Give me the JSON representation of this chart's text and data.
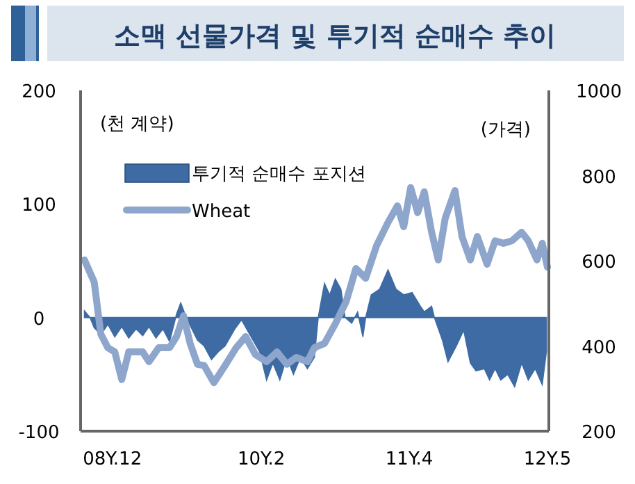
{
  "chart_data": {
    "type": "area",
    "title": "소맥 선물가격 및 투기적 순매수 추이",
    "ylabel": "(천 계약)",
    "y2label": "(가격)",
    "xlim": [
      "2008-09-01",
      "2012-05-05"
    ],
    "xticks": [
      {
        "value": "2008-12-01",
        "label": "08Y.12"
      },
      {
        "value": "2010-02-01",
        "label": "10Y.2"
      },
      {
        "value": "2011-04-01",
        "label": "11Y.4"
      },
      {
        "value": "2012-05-01",
        "label": "12Y.5"
      }
    ],
    "ylim": [
      -100,
      200
    ],
    "yticks": [
      -100,
      0,
      100,
      200
    ],
    "y2lim": [
      200,
      1000
    ],
    "y2ticks": [
      200,
      400,
      600,
      800,
      1000
    ],
    "legend": "top left",
    "grid": false,
    "series": [
      {
        "name": "투기적 순매수 포지션",
        "color": "#3e6ba3",
        "x": [
          "2008-09-12",
          "2008-09-28",
          "2008-10-10",
          "2008-10-29",
          "2008-11-18",
          "2008-12-08",
          "2008-12-28",
          "2009-01-17",
          "2009-02-07",
          "2009-02-26",
          "2009-03-16",
          "2009-04-05",
          "2009-04-25",
          "2009-05-14",
          "2009-06-03",
          "2009-06-15",
          "2009-07-01",
          "2009-08-02",
          "2009-08-21",
          "2009-09-11",
          "2009-10-01",
          "2009-10-20",
          "2009-11-17",
          "2009-12-06",
          "2009-12-30",
          "2010-01-27",
          "2010-02-16",
          "2010-03-06",
          "2010-03-26",
          "2010-04-15",
          "2010-05-04",
          "2010-05-24",
          "2010-06-13",
          "2010-07-03",
          "2010-07-14",
          "2010-08-01",
          "2010-08-16",
          "2010-09-01",
          "2010-09-17",
          "2010-09-29",
          "2010-10-18",
          "2010-11-04",
          "2010-11-19",
          "2010-11-27",
          "2010-12-13",
          "2011-01-06",
          "2011-01-30",
          "2011-02-22",
          "2011-03-16",
          "2011-04-09",
          "2011-05-03",
          "2011-05-14",
          "2011-06-04",
          "2011-06-12",
          "2011-07-05",
          "2011-07-21",
          "2011-08-14",
          "2011-09-04",
          "2011-09-23",
          "2011-10-09",
          "2011-11-02",
          "2011-11-17",
          "2011-12-03",
          "2011-12-19",
          "2012-01-08",
          "2012-01-28",
          "2012-02-17",
          "2012-03-07",
          "2012-03-27",
          "2012-04-16",
          "2012-04-28"
        ],
        "values": [
          6,
          0,
          -9,
          -15,
          -6,
          -17,
          -8,
          -18,
          -10,
          -16,
          -8,
          -18,
          -10,
          -21,
          3,
          13,
          0,
          -20,
          -25,
          -37,
          -30,
          -25,
          -10,
          -2,
          -15,
          -30,
          -55,
          -40,
          -55,
          -35,
          -50,
          -35,
          -45,
          -35,
          0,
          30,
          20,
          34,
          25,
          0,
          -5,
          5,
          -17,
          0,
          20,
          25,
          42,
          25,
          20,
          22,
          10,
          5,
          10,
          0,
          -20,
          -39,
          -25,
          -11,
          -40,
          -47,
          -45,
          -55,
          -45,
          -55,
          -50,
          -61,
          -40,
          -55,
          -45,
          -59,
          -30
        ]
      },
      {
        "name": "Wheat",
        "type": "line",
        "axis": "y2",
        "color": "#8ea6cc",
        "x": [
          "2008-09-12",
          "2008-10-10",
          "2008-10-29",
          "2008-11-18",
          "2008-12-08",
          "2008-12-28",
          "2009-01-17",
          "2009-02-26",
          "2009-03-16",
          "2009-04-13",
          "2009-05-14",
          "2009-06-03",
          "2009-06-23",
          "2009-07-12",
          "2009-08-02",
          "2009-08-21",
          "2009-09-18",
          "2009-10-20",
          "2009-11-21",
          "2009-12-18",
          "2010-01-15",
          "2010-02-16",
          "2010-03-18",
          "2010-04-15",
          "2010-05-12",
          "2010-06-13",
          "2010-07-03",
          "2010-08-01",
          "2010-09-01",
          "2010-10-02",
          "2010-10-30",
          "2010-11-27",
          "2010-12-28",
          "2011-01-30",
          "2011-02-26",
          "2011-03-16",
          "2011-04-05",
          "2011-04-25",
          "2011-05-14",
          "2011-06-04",
          "2011-06-23",
          "2011-07-13",
          "2011-08-10",
          "2011-08-30",
          "2011-09-23",
          "2011-10-13",
          "2011-11-10",
          "2011-12-03",
          "2011-12-27",
          "2012-01-20",
          "2012-02-17",
          "2012-03-07",
          "2012-04-01",
          "2012-04-16",
          "2012-05-01"
        ],
        "values": [
          602,
          550,
          428,
          396,
          386,
          321,
          386,
          386,
          363,
          396,
          396,
          422,
          471,
          406,
          357,
          354,
          314,
          354,
          396,
          422,
          380,
          363,
          386,
          357,
          373,
          363,
          396,
          406,
          452,
          504,
          582,
          559,
          635,
          690,
          729,
          680,
          772,
          713,
          762,
          667,
          602,
          700,
          765,
          657,
          602,
          657,
          592,
          647,
          641,
          647,
          667,
          647,
          602,
          641,
          585
        ]
      }
    ]
  }
}
